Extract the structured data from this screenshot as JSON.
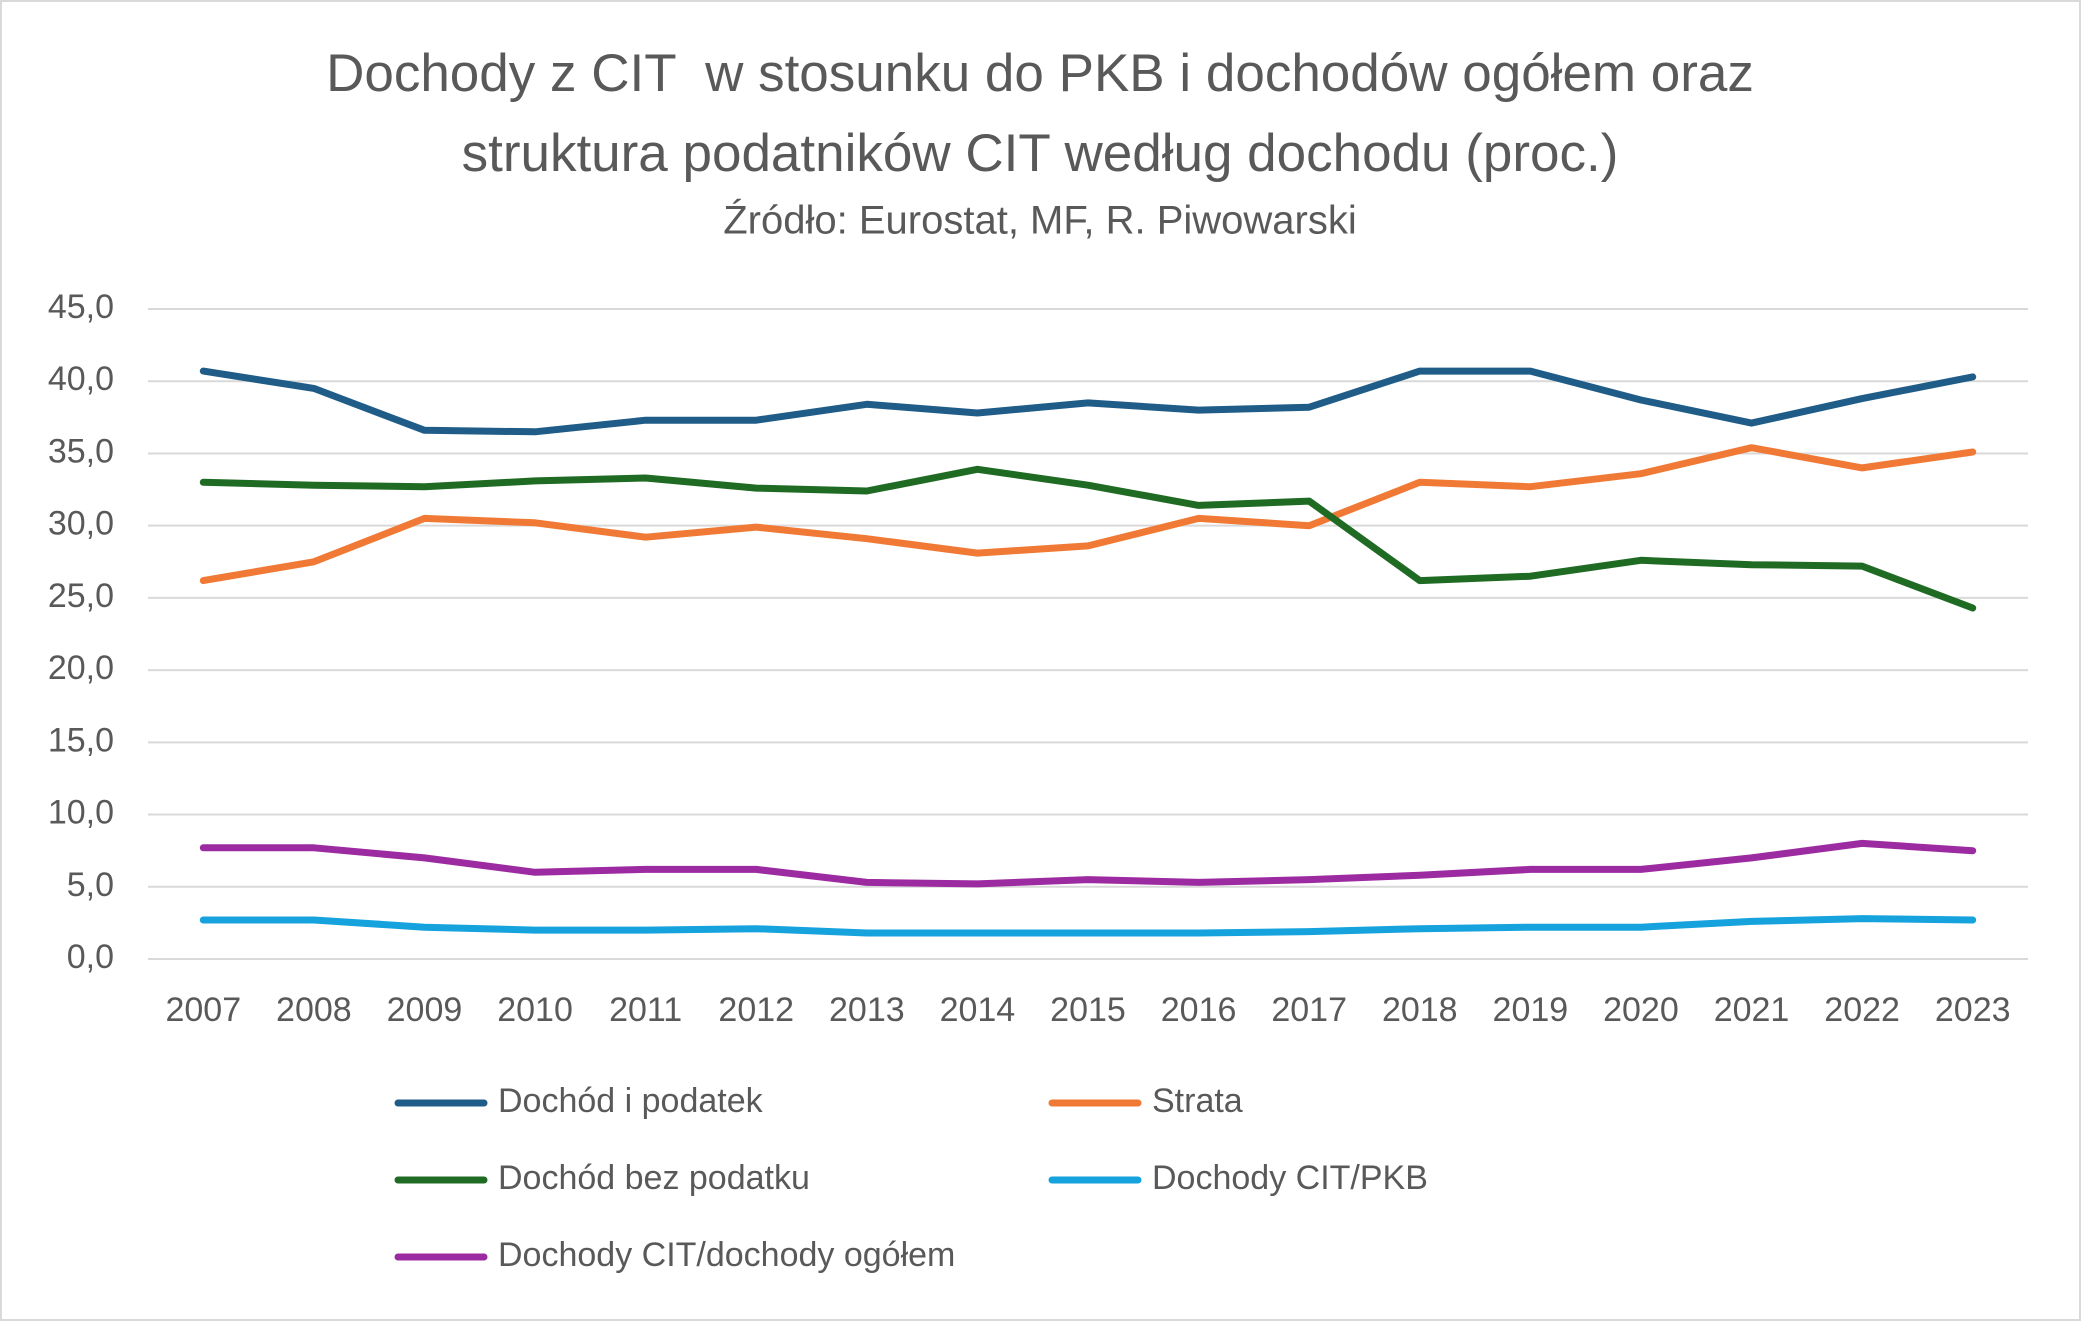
{
  "chart_data": {
    "type": "line",
    "title": [
      "Dochody z CIT  w stosunku do PKB i dochodów ogółem oraz",
      "struktura podatników CIT według dochodu (proc.)"
    ],
    "subtitle": "Źródło: Eurostat, MF, R. Piwowarski",
    "categories": [
      "2007",
      "2008",
      "2009",
      "2010",
      "2011",
      "2012",
      "2013",
      "2014",
      "2015",
      "2016",
      "2017",
      "2018",
      "2019",
      "2020",
      "2021",
      "2022",
      "2023"
    ],
    "series": [
      {
        "name": "Dochód i podatek",
        "color": "#1f5c87",
        "values": [
          40.7,
          39.5,
          36.6,
          36.5,
          37.3,
          37.3,
          38.4,
          37.8,
          38.5,
          38.0,
          38.2,
          40.7,
          40.7,
          38.7,
          37.1,
          38.8,
          40.3
        ]
      },
      {
        "name": "Strata",
        "color": "#f07a35",
        "values": [
          26.2,
          27.5,
          30.5,
          30.2,
          29.2,
          29.9,
          29.1,
          28.1,
          28.6,
          30.5,
          30.0,
          33.0,
          32.7,
          33.6,
          35.4,
          34.0,
          35.1
        ]
      },
      {
        "name": "Dochód bez podatku",
        "color": "#1f6b23",
        "values": [
          33.0,
          32.8,
          32.7,
          33.1,
          33.3,
          32.6,
          32.4,
          33.9,
          32.8,
          31.4,
          31.7,
          26.2,
          26.5,
          27.6,
          27.3,
          27.2,
          24.3
        ]
      },
      {
        "name": "Dochody CIT/PKB",
        "color": "#16a2dc",
        "values": [
          2.7,
          2.7,
          2.2,
          2.0,
          2.0,
          2.1,
          1.8,
          1.8,
          1.8,
          1.8,
          1.9,
          2.1,
          2.2,
          2.2,
          2.6,
          2.8,
          2.7
        ]
      },
      {
        "name": "Dochody CIT/dochody ogółem",
        "color": "#9c2aa0",
        "values": [
          7.7,
          7.7,
          7.0,
          6.0,
          6.2,
          6.2,
          5.3,
          5.2,
          5.5,
          5.3,
          5.5,
          5.8,
          6.2,
          6.2,
          7.0,
          8.0,
          7.5
        ]
      }
    ],
    "ylim": [
      0,
      45
    ],
    "yticks": [
      {
        "value": 0,
        "label": "0,0"
      },
      {
        "value": 5,
        "label": "5,0"
      },
      {
        "value": 10,
        "label": "10,0"
      },
      {
        "value": 15,
        "label": "15,0"
      },
      {
        "value": 20,
        "label": "20,0"
      },
      {
        "value": 25,
        "label": "25,0"
      },
      {
        "value": 30,
        "label": "30,0"
      },
      {
        "value": 35,
        "label": "35,0"
      },
      {
        "value": 40,
        "label": "40,0"
      },
      {
        "value": 45,
        "label": "45,0"
      }
    ],
    "grid": true
  }
}
